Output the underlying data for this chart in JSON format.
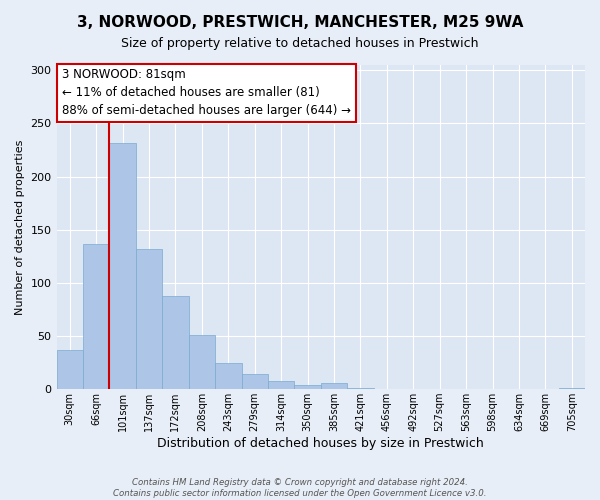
{
  "title": "3, NORWOOD, PRESTWICH, MANCHESTER, M25 9WA",
  "subtitle": "Size of property relative to detached houses in Prestwich",
  "xlabel": "Distribution of detached houses by size in Prestwich",
  "ylabel": "Number of detached properties",
  "bar_values": [
    37,
    137,
    232,
    132,
    88,
    51,
    25,
    14,
    8,
    4,
    6,
    1,
    0,
    0,
    0,
    0,
    0,
    0,
    0,
    1
  ],
  "bar_labels": [
    "30sqm",
    "66sqm",
    "101sqm",
    "137sqm",
    "172sqm",
    "208sqm",
    "243sqm",
    "279sqm",
    "314sqm",
    "350sqm",
    "385sqm",
    "421sqm",
    "456sqm",
    "492sqm",
    "527sqm",
    "563sqm",
    "598sqm",
    "634sqm",
    "669sqm",
    "705sqm"
  ],
  "bar_color": "#adc6e8",
  "bar_edge_color": "#7aaad0",
  "background_color": "#e8eef7",
  "plot_bg_color": "#dde6f3",
  "grid_color": "#ffffff",
  "vline_x": 1.5,
  "vline_color": "#cc0000",
  "annotation_text": "3 NORWOOD: 81sqm\n← 11% of detached houses are smaller (81)\n88% of semi-detached houses are larger (644) →",
  "annotation_box_color": "#ffffff",
  "annotation_box_edge_color": "#cc0000",
  "ylim": [
    0,
    305
  ],
  "yticks": [
    0,
    50,
    100,
    150,
    200,
    250,
    300
  ],
  "footer_line1": "Contains HM Land Registry data © Crown copyright and database right 2024.",
  "footer_line2": "Contains public sector information licensed under the Open Government Licence v3.0."
}
